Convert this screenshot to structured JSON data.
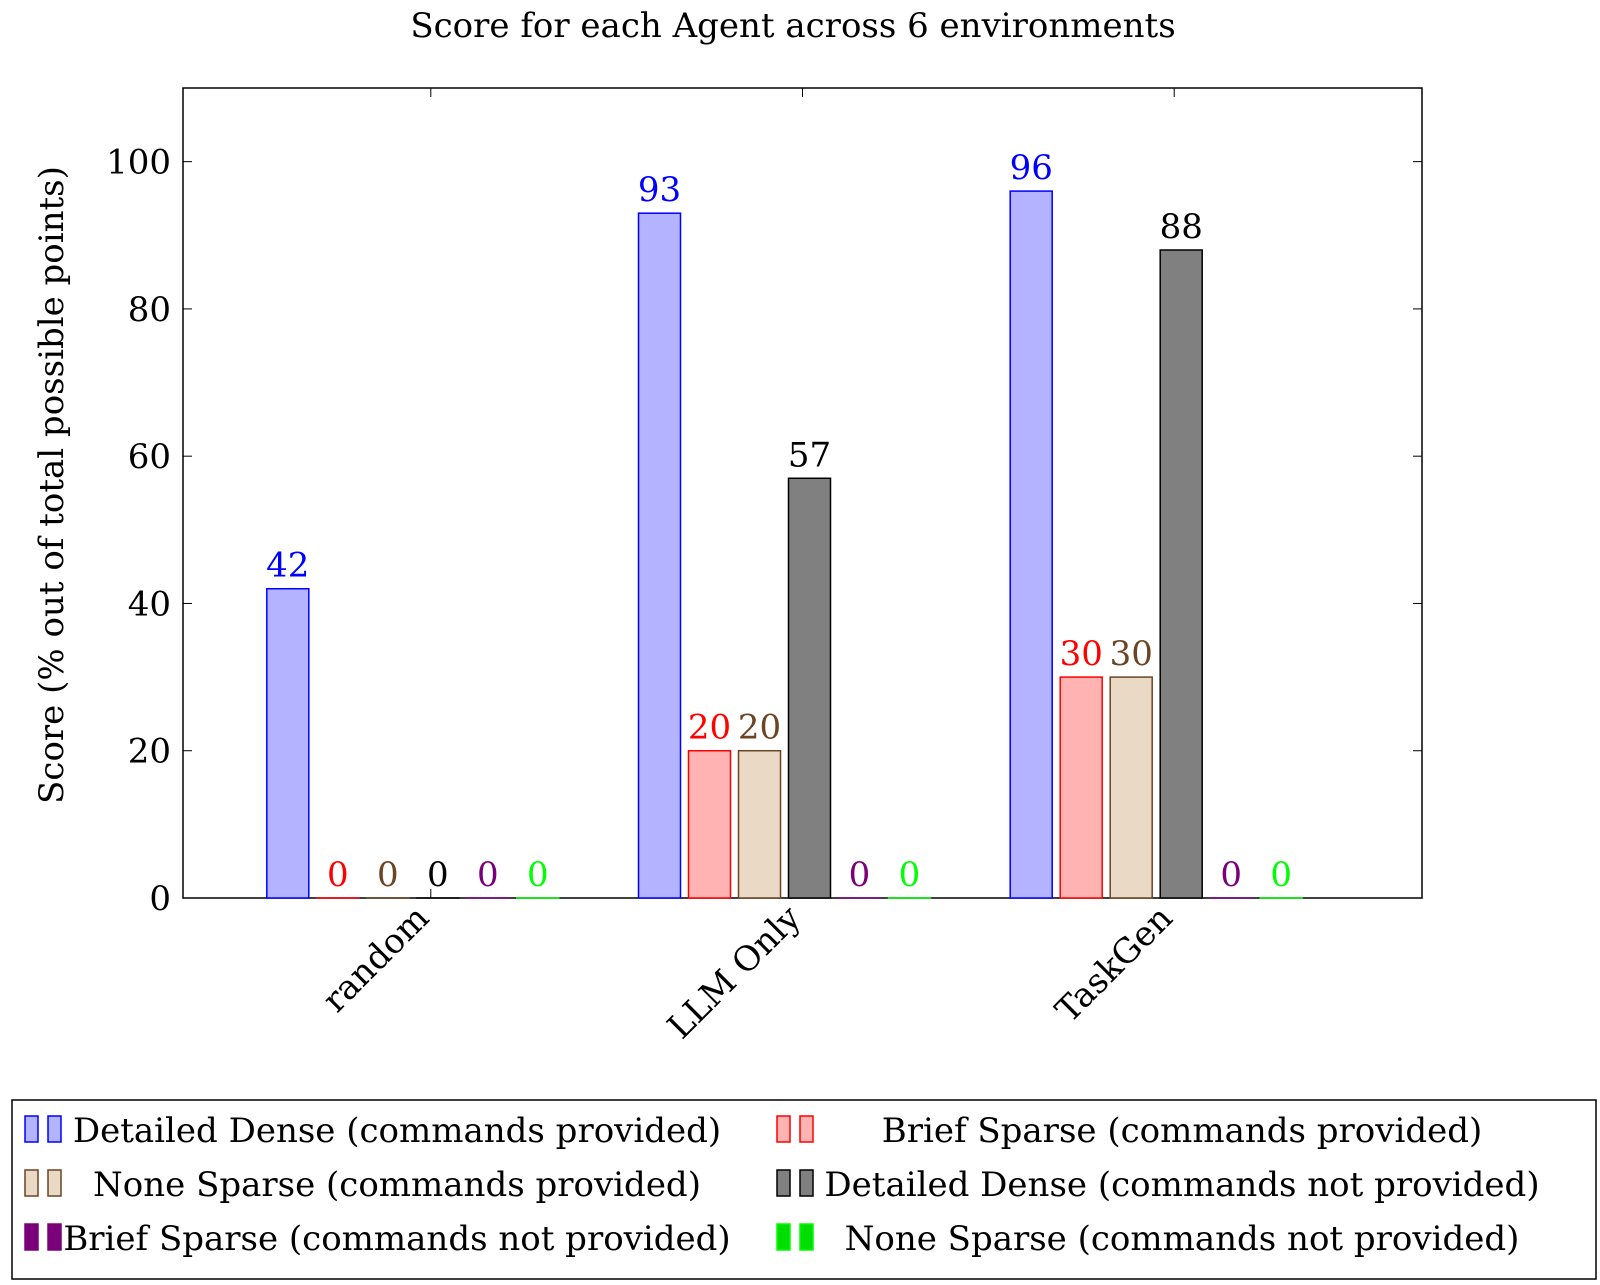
{
  "chart_data": {
    "type": "bar",
    "title": "Score for each Agent across 6 environments",
    "xlabel": "",
    "ylabel": "Score (% out of total possible points)",
    "ylim": [
      0,
      110
    ],
    "yticks": [
      0,
      20,
      40,
      60,
      80,
      100
    ],
    "grid": false,
    "legend_position": "bottom",
    "categories": [
      "random",
      "LLM Only",
      "TaskGen"
    ],
    "series": [
      {
        "name": "Detailed Dense (commands provided)",
        "values": [
          42,
          93,
          96
        ],
        "stroke": "#0000ff",
        "fill": "#b3b3ff",
        "label_color": "#0000ff"
      },
      {
        "name": "Brief Sparse (commands provided)",
        "values": [
          0,
          20,
          30
        ],
        "stroke": "#ff0000",
        "fill": "#ffb3b3",
        "label_color": "#ff0000"
      },
      {
        "name": "None Sparse (commands provided)",
        "values": [
          0,
          20,
          30
        ],
        "stroke": "#6b4423",
        "fill": "#ead9c5",
        "label_color": "#6b4423"
      },
      {
        "name": "Detailed Dense (commands not provided)",
        "values": [
          0,
          57,
          88
        ],
        "stroke": "#000000",
        "fill": "#808080",
        "label_color": "#000000"
      },
      {
        "name": "Brief Sparse (commands not provided)",
        "values": [
          0,
          0,
          0
        ],
        "stroke": "#7a007a",
        "fill": "#7a007a",
        "label_color": "#7a007a"
      },
      {
        "name": "None Sparse (commands not provided)",
        "values": [
          0,
          0,
          0
        ],
        "stroke": "#00ff00",
        "fill": "#00dd00",
        "label_color": "#00ff00"
      }
    ]
  }
}
